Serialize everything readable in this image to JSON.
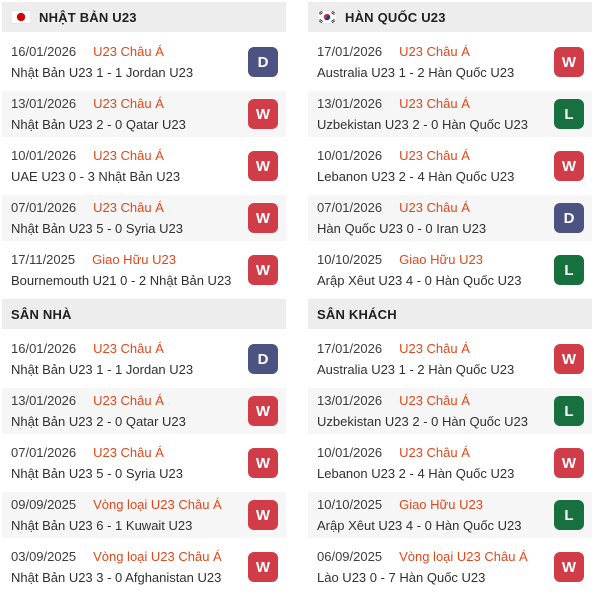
{
  "colors": {
    "competition_text": "#e1481c",
    "win_badge": "#d03d49",
    "draw_badge": "#4c5382",
    "loss_badge": "#17713f",
    "header_bg": "#ededed",
    "row_alt_bg": "#f6f6f6"
  },
  "columns": [
    {
      "team": "Nhật Bản U23",
      "sections": [
        {
          "title": "NHẬT BẢN U23",
          "flag": "japan-flag-icon",
          "rows": [
            {
              "date": "16/01/2026",
              "competition": "U23 Châu Á",
              "match": "Nhật Bản U23 1 - 1 Jordan U23",
              "result": "D"
            },
            {
              "date": "13/01/2026",
              "competition": "U23 Châu Á",
              "match": "Nhật Bản U23 2 - 0 Qatar U23",
              "result": "W"
            },
            {
              "date": "10/01/2026",
              "competition": "U23 Châu Á",
              "match": "UAE U23 0 - 3 Nhật Bản U23",
              "result": "W"
            },
            {
              "date": "07/01/2026",
              "competition": "U23 Châu Á",
              "match": "Nhật Bản U23 5 - 0 Syria U23",
              "result": "W"
            },
            {
              "date": "17/11/2025",
              "competition": "Giao Hữu U23",
              "match": "Bournemouth U21 0 - 2 Nhật Bản U23",
              "result": "W"
            }
          ]
        },
        {
          "title": "SÂN NHÀ",
          "flag": null,
          "rows": [
            {
              "date": "16/01/2026",
              "competition": "U23 Châu Á",
              "match": "Nhật Bản U23 1 - 1 Jordan U23",
              "result": "D"
            },
            {
              "date": "13/01/2026",
              "competition": "U23 Châu Á",
              "match": "Nhật Bản U23 2 - 0 Qatar U23",
              "result": "W"
            },
            {
              "date": "07/01/2026",
              "competition": "U23 Châu Á",
              "match": "Nhật Bản U23 5 - 0 Syria U23",
              "result": "W"
            },
            {
              "date": "09/09/2025",
              "competition": "Vòng loại U23 Châu Á",
              "match": "Nhật Bản U23 6 - 1 Kuwait U23",
              "result": "W"
            },
            {
              "date": "03/09/2025",
              "competition": "Vòng loại U23 Châu Á",
              "match": "Nhật Bản U23 3 - 0 Afghanistan U23",
              "result": "W"
            }
          ]
        }
      ]
    },
    {
      "team": "Hàn Quốc U23",
      "sections": [
        {
          "title": "HÀN QUỐC U23",
          "flag": "korea-flag-icon",
          "rows": [
            {
              "date": "17/01/2026",
              "competition": "U23 Châu Á",
              "match": "Australia U23 1 - 2 Hàn Quốc U23",
              "result": "W"
            },
            {
              "date": "13/01/2026",
              "competition": "U23 Châu Á",
              "match": "Uzbekistan U23 2 - 0 Hàn Quốc U23",
              "result": "L"
            },
            {
              "date": "10/01/2026",
              "competition": "U23 Châu Á",
              "match": "Lebanon U23 2 - 4 Hàn Quốc U23",
              "result": "W"
            },
            {
              "date": "07/01/2026",
              "competition": "U23 Châu Á",
              "match": "Hàn Quốc U23 0 - 0 Iran U23",
              "result": "D"
            },
            {
              "date": "10/10/2025",
              "competition": "Giao Hữu U23",
              "match": "Arập Xêut U23 4 - 0 Hàn Quốc U23",
              "result": "L"
            }
          ]
        },
        {
          "title": "SÂN KHÁCH",
          "flag": null,
          "rows": [
            {
              "date": "17/01/2026",
              "competition": "U23 Châu Á",
              "match": "Australia U23 1 - 2 Hàn Quốc U23",
              "result": "W"
            },
            {
              "date": "13/01/2026",
              "competition": "U23 Châu Á",
              "match": "Uzbekistan U23 2 - 0 Hàn Quốc U23",
              "result": "L"
            },
            {
              "date": "10/01/2026",
              "competition": "U23 Châu Á",
              "match": "Lebanon U23 2 - 4 Hàn Quốc U23",
              "result": "W"
            },
            {
              "date": "10/10/2025",
              "competition": "Giao Hữu U23",
              "match": "Arập Xêut U23 4 - 0 Hàn Quốc U23",
              "result": "L"
            },
            {
              "date": "06/09/2025",
              "competition": "Vòng loại U23 Châu Á",
              "match": "Lào U23 0 - 7 Hàn Quốc U23",
              "result": "W"
            }
          ]
        }
      ]
    }
  ]
}
